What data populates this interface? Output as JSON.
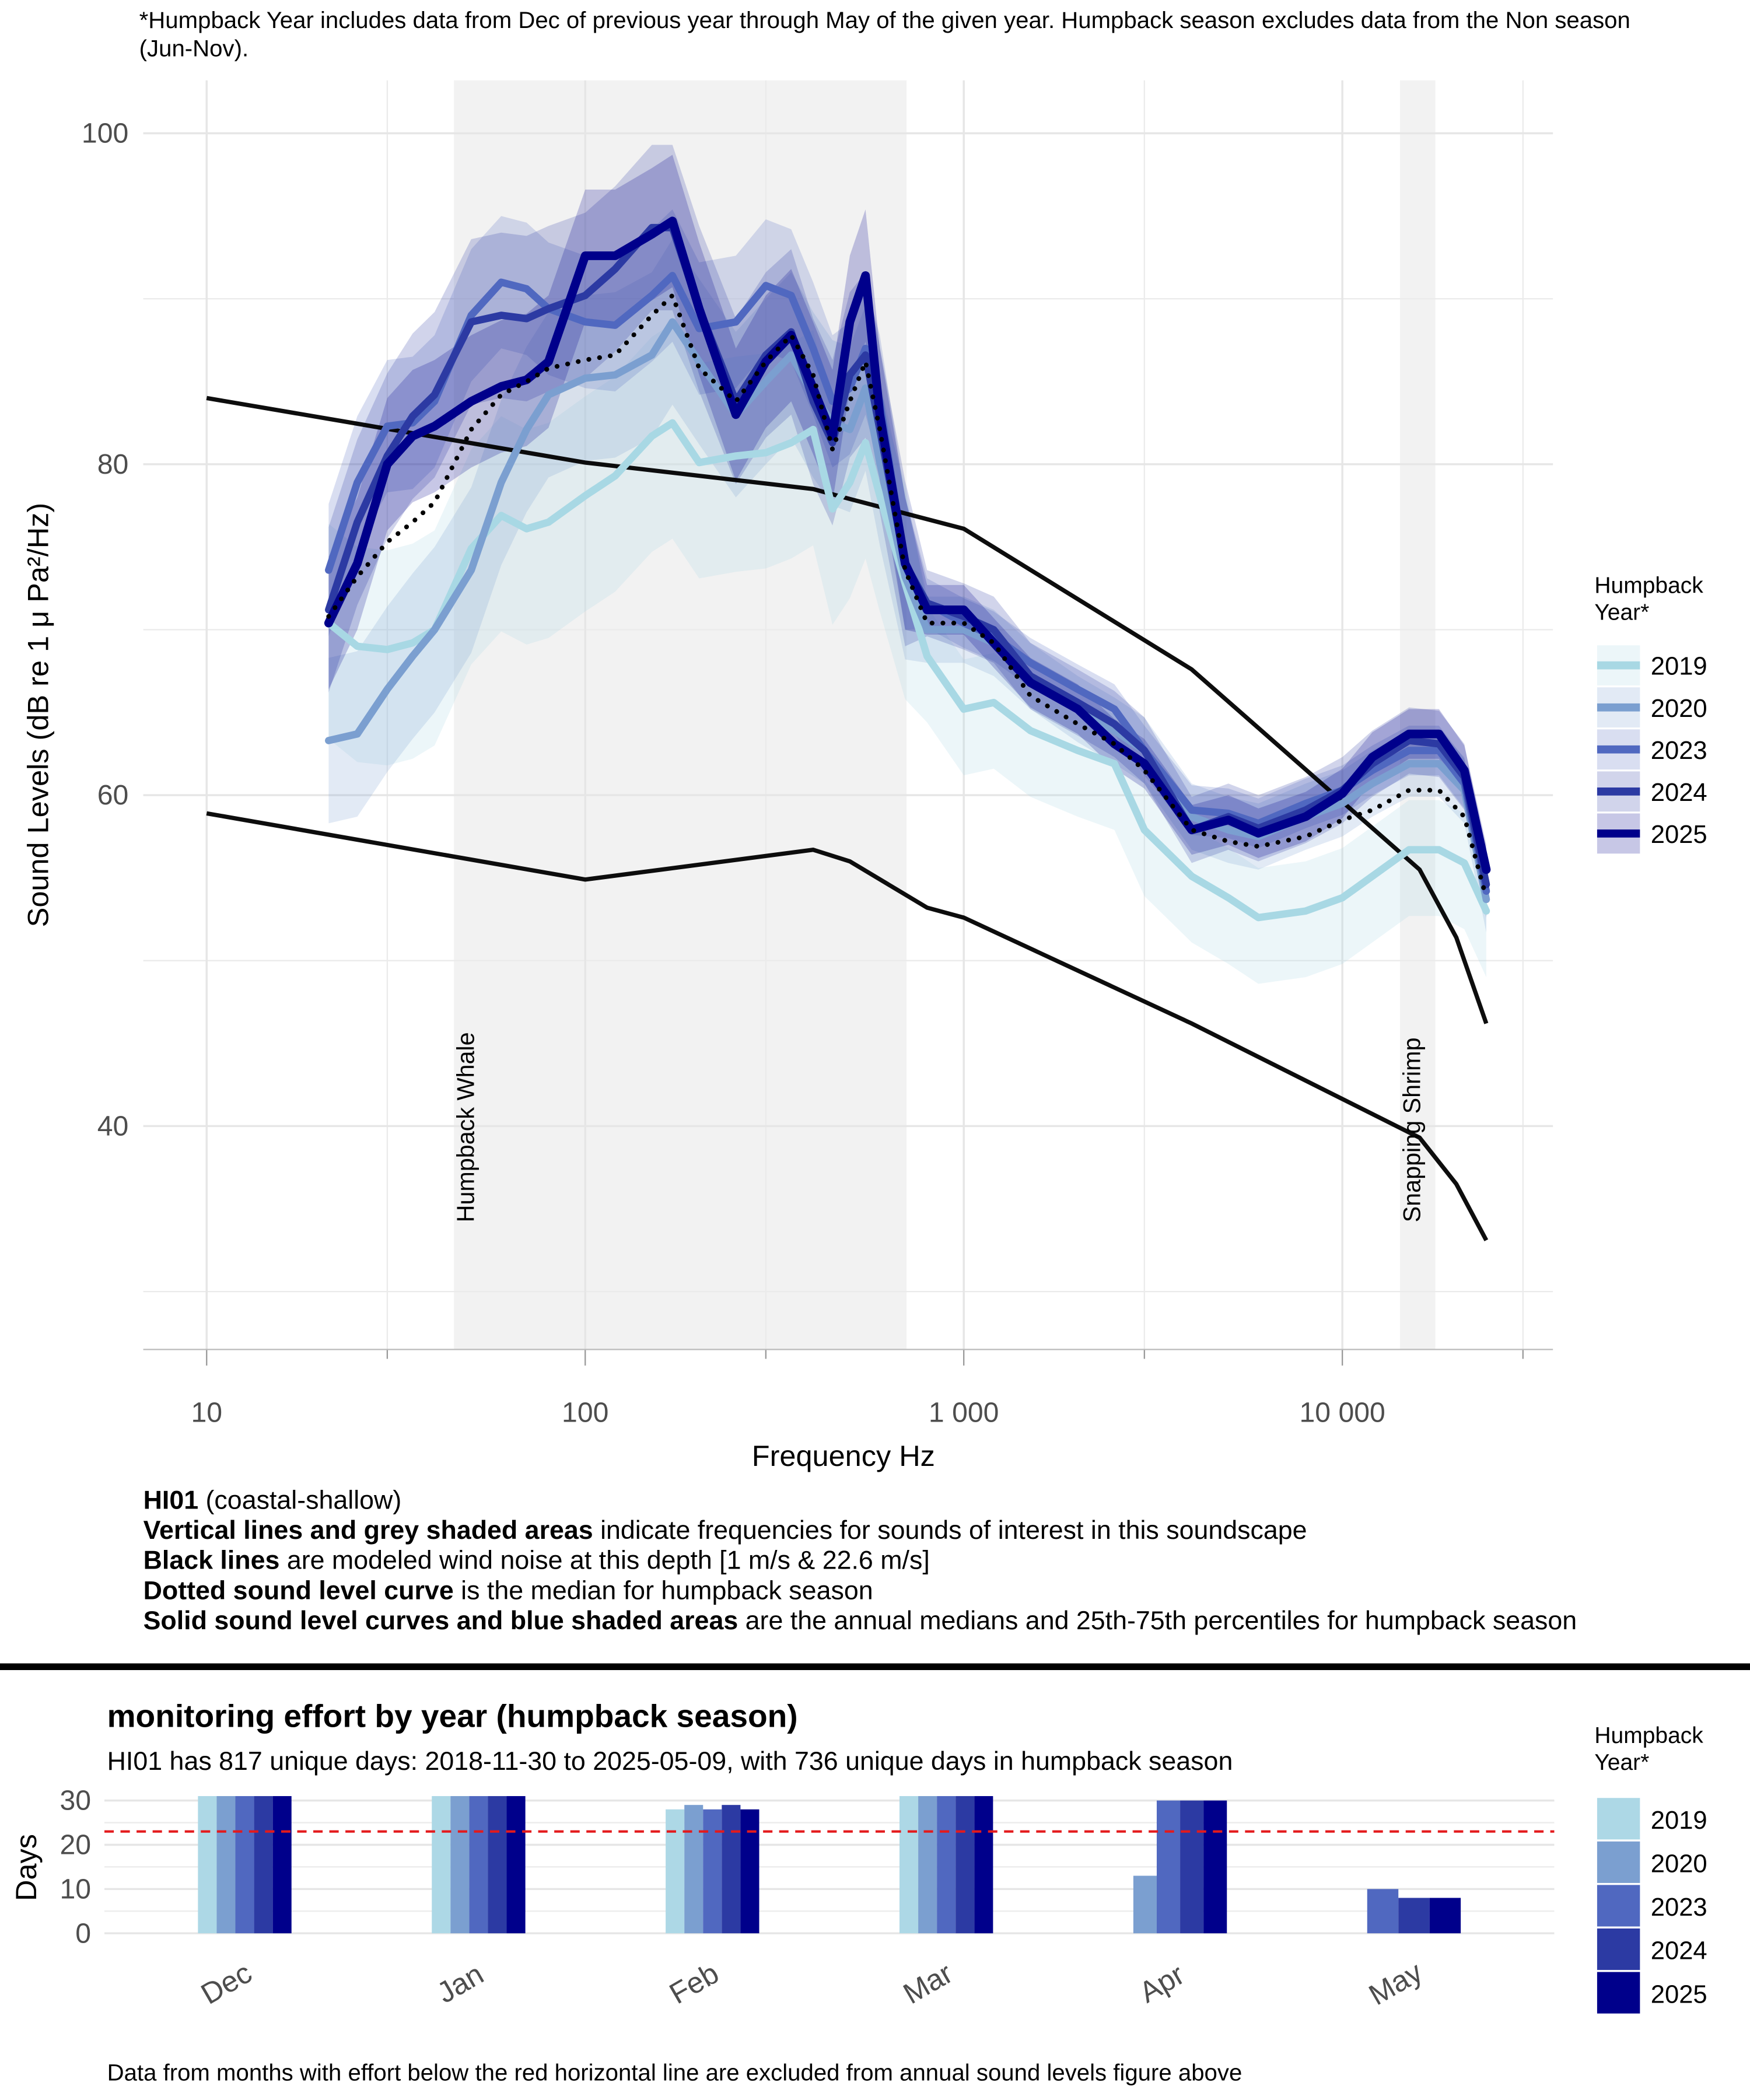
{
  "chart_data": [
    {
      "type": "line",
      "title": "*Humpback Year includes data from Dec of previous year through May of the given year. Humpback season excludes data from the Non season (Jun-Nov).",
      "xlabel": "Frequency Hz",
      "ylabel": "Sound Levels (dB re 1 μ Pa²/Hz)",
      "xscale": "log",
      "xlim": [
        6.8,
        36000
      ],
      "ylim": [
        26.5,
        103.2
      ],
      "xticks": [
        10,
        100,
        {
          "value": 1000,
          "label": "1 000"
        },
        {
          "value": 10000,
          "label": "10 000"
        }
      ],
      "minor_xticks": [
        30,
        300,
        3000,
        30000
      ],
      "yticks": [
        40,
        60,
        80,
        100
      ],
      "minor_yticks": [
        30,
        50,
        70,
        90
      ],
      "grid": true,
      "legend": "right",
      "legend_title": "Humpback Year*",
      "regions": [
        {
          "label": "Humpback Whale",
          "range": [
            45,
            706
          ]
        },
        {
          "label": "Snapping Shrimp",
          "range": [
            14200,
            17600
          ]
        }
      ],
      "x": [
        21,
        25,
        30,
        35,
        40,
        50,
        60,
        70,
        80,
        100,
        120,
        150,
        170,
        200,
        250,
        300,
        350,
        400,
        450,
        500,
        550,
        600,
        700,
        800,
        1000,
        1200,
        1500,
        2000,
        2500,
        3000,
        4000,
        5000,
        6000,
        8000,
        10000,
        12000,
        15000,
        18000,
        21000,
        24000
      ],
      "series": [
        {
          "name": "2019",
          "color": "#a8d8e4",
          "values": [
            70.4,
            69,
            68.8,
            69.2,
            70,
            74.9,
            76.9,
            76.1,
            76.5,
            78.1,
            79.3,
            81.7,
            82.5,
            80.1,
            80.5,
            80.7,
            81.3,
            82.1,
            77.3,
            78.9,
            81.3,
            78.1,
            72.8,
            68.4,
            65.2,
            65.6,
            63.9,
            62.7,
            61.9,
            57.9,
            55.1,
            53.8,
            52.6,
            53,
            53.8,
            55.1,
            56.7,
            56.7,
            55.9,
            53
          ],
          "low": [
            63.4,
            62,
            61.8,
            62.2,
            63,
            67.9,
            69.9,
            69.1,
            69.5,
            71.1,
            72.3,
            74.7,
            75.5,
            73.1,
            73.5,
            73.7,
            74.3,
            75.1,
            70.3,
            71.9,
            74.3,
            71.1,
            65.8,
            64.4,
            61.2,
            61.6,
            59.9,
            58.7,
            57.9,
            53.9,
            51.1,
            49.8,
            48.6,
            49,
            49.8,
            51.1,
            52.7,
            52.7,
            51.9,
            49
          ],
          "high": [
            76.4,
            75,
            74.8,
            75.2,
            76,
            80.9,
            82.9,
            82.1,
            82.5,
            84.1,
            85.3,
            87.7,
            88.5,
            86.1,
            86.5,
            86.7,
            87.3,
            88.1,
            83.3,
            84.9,
            87.3,
            84.1,
            78.8,
            71.4,
            68.2,
            68.6,
            66.9,
            65.7,
            64.9,
            60.9,
            58.1,
            56.8,
            55.6,
            56,
            56.8,
            58.1,
            59.7,
            59.7,
            58.9,
            56
          ]
        },
        {
          "name": "2020",
          "color": "#7b9fd0",
          "values": [
            63.3,
            63.7,
            66.4,
            68.4,
            70,
            73.6,
            78.9,
            82.1,
            84.2,
            85.2,
            85.4,
            86.6,
            88.6,
            86.2,
            83,
            85,
            86.6,
            84.2,
            82.5,
            82.1,
            84.6,
            80.1,
            73.2,
            70,
            70,
            69.2,
            67.2,
            65.2,
            63.9,
            62.7,
            58.7,
            57.9,
            57.5,
            58.7,
            59.5,
            60.7,
            61.9,
            61.9,
            60.3,
            53.7
          ],
          "low": [
            58.3,
            58.7,
            61.4,
            63.4,
            65,
            68.6,
            73.9,
            77.1,
            79.2,
            80.2,
            80.4,
            81.6,
            83.6,
            81.2,
            78,
            80,
            81.6,
            79.2,
            77.5,
            77.1,
            79.6,
            75.1,
            68.2,
            68,
            68,
            67.2,
            65.2,
            63.2,
            61.9,
            60.7,
            56.7,
            55.9,
            55.5,
            56.7,
            57.5,
            58.7,
            59.9,
            59.9,
            58.3,
            51.7
          ],
          "high": [
            68.3,
            68.7,
            71.4,
            73.4,
            75,
            78.6,
            83.9,
            87.1,
            89.2,
            90.2,
            90.4,
            91.6,
            93.6,
            91.2,
            88,
            90,
            91.6,
            89.2,
            87.5,
            87.1,
            89.6,
            85.1,
            78.2,
            72,
            72,
            71.2,
            69.2,
            67.2,
            65.9,
            64.7,
            60.7,
            59.9,
            59.5,
            60.7,
            61.5,
            62.7,
            63.9,
            63.9,
            62.3,
            55.7
          ]
        },
        {
          "name": "2023",
          "color": "#5068c0",
          "values": [
            73.6,
            78.9,
            82.3,
            82.5,
            83.8,
            89,
            91,
            90.6,
            89.4,
            88.6,
            88.4,
            90.2,
            91.4,
            88.2,
            88.6,
            90.8,
            90.2,
            87,
            83.8,
            84.6,
            87,
            83.8,
            74,
            71.6,
            70.4,
            69.6,
            68,
            66.4,
            65.2,
            62.7,
            59.1,
            58.9,
            58.3,
            59.5,
            60.3,
            61.5,
            62.7,
            62.7,
            60.7,
            54.2
          ],
          "low": [
            69.6,
            74.9,
            78.3,
            78.5,
            79.8,
            85,
            87,
            86.6,
            85.4,
            84.6,
            84.4,
            86.2,
            87.4,
            84.2,
            84.6,
            86.8,
            86.2,
            83,
            79.8,
            80.6,
            83,
            79.8,
            70,
            70.1,
            68.9,
            68.1,
            66.5,
            64.9,
            63.7,
            61.2,
            57.6,
            57.4,
            56.8,
            58,
            58.8,
            60,
            61.2,
            61.2,
            59.2,
            52.7
          ],
          "high": [
            77.6,
            82.9,
            86.3,
            86.5,
            87.8,
            93,
            95,
            94.6,
            93.4,
            92.6,
            92.4,
            94.2,
            95.4,
            92.2,
            92.6,
            94.8,
            94.2,
            91,
            87.8,
            88.6,
            91,
            87.8,
            78,
            73.1,
            71.9,
            71.1,
            69.5,
            67.9,
            66.7,
            64.2,
            60.6,
            60.4,
            59.8,
            61,
            61.8,
            63,
            64.2,
            64.2,
            62.2,
            55.7
          ]
        },
        {
          "name": "2024",
          "color": "#2c3aa3",
          "values": [
            71.2,
            76.5,
            80.5,
            82.9,
            84.2,
            88.6,
            89,
            88.8,
            89.4,
            90.2,
            91.8,
            94.3,
            94.3,
            89.4,
            83.8,
            86.6,
            88,
            83.8,
            81.3,
            85.4,
            86.6,
            82.1,
            74,
            71.6,
            70.8,
            70,
            67.2,
            65.6,
            64.3,
            62.7,
            57.9,
            58.7,
            58,
            59.1,
            60.3,
            61.9,
            63.3,
            63.1,
            61.1,
            54.6
          ],
          "low": [
            66.2,
            71.5,
            75.5,
            77.9,
            79.2,
            83.6,
            84,
            83.8,
            84.4,
            85.2,
            86.8,
            89.3,
            89.3,
            84.4,
            78.8,
            81.6,
            83,
            78.8,
            76.3,
            80.4,
            81.6,
            77.1,
            69,
            69.6,
            68.8,
            68,
            65.2,
            63.6,
            62.3,
            60.7,
            55.9,
            56.7,
            56,
            57.1,
            58.3,
            59.9,
            61.3,
            61.1,
            59.1,
            52.6
          ],
          "high": [
            76.2,
            81.5,
            85.5,
            87.9,
            89.2,
            93.6,
            94,
            93.8,
            94.4,
            95.2,
            96.8,
            99.3,
            99.3,
            94.4,
            88.8,
            91.6,
            93,
            88.8,
            86.3,
            90.4,
            91.6,
            87.1,
            79,
            73.6,
            72.8,
            72,
            69.2,
            67.6,
            66.3,
            64.7,
            59.9,
            60.7,
            60,
            61.1,
            62.3,
            63.9,
            65.3,
            65.1,
            63.1,
            56.6
          ]
        },
        {
          "name": "2025",
          "color": "#00008b",
          "values": [
            70.4,
            74,
            80,
            81.7,
            82.3,
            83.8,
            84.7,
            85.1,
            86.2,
            92.6,
            92.6,
            93.9,
            94.7,
            89.4,
            83,
            86.2,
            87.8,
            84.6,
            81.7,
            88.6,
            91.4,
            83,
            74,
            71.2,
            71.2,
            69.2,
            66.8,
            65.2,
            63.1,
            61.9,
            57.9,
            58.5,
            57.7,
            58.7,
            60.1,
            62.3,
            63.7,
            63.7,
            61.5,
            55.5
          ],
          "low": [
            66.4,
            70,
            76,
            77.7,
            78.3,
            79.8,
            80.7,
            81.1,
            82.2,
            88.6,
            88.6,
            89.9,
            90.7,
            85.4,
            79,
            82.2,
            83.8,
            80.6,
            77.7,
            84.6,
            87.4,
            79,
            70,
            69.7,
            69.7,
            67.7,
            65.3,
            63.7,
            61.6,
            60.4,
            56.4,
            57,
            56.2,
            57.2,
            58.6,
            60.8,
            62.2,
            62.2,
            60,
            54
          ],
          "high": [
            74.4,
            78,
            84,
            85.7,
            86.3,
            87.8,
            88.7,
            89.1,
            90.2,
            96.6,
            96.6,
            97.9,
            98.7,
            93.4,
            87,
            90.2,
            91.8,
            88.6,
            85.7,
            92.6,
            95.4,
            87,
            78,
            72.7,
            72.7,
            70.7,
            68.3,
            66.7,
            64.6,
            63.4,
            59.4,
            60,
            59.2,
            60.2,
            61.6,
            63.8,
            65.2,
            65.2,
            63,
            57
          ]
        }
      ],
      "median_values": [
        70.8,
        73.2,
        75.3,
        76.5,
        77.7,
        82.1,
        84.2,
        85,
        85.8,
        86.3,
        86.6,
        89,
        90.2,
        85.8,
        83.8,
        86.2,
        87.8,
        85.4,
        80.9,
        83.8,
        86.2,
        82.1,
        73.6,
        70.4,
        70.4,
        69.2,
        66,
        64.3,
        63.1,
        61.5,
        57.9,
        57.2,
        56.9,
        57.5,
        58.5,
        59.1,
        60.3,
        60.3,
        58.7,
        53.8
      ],
      "median_color": "#000000",
      "reference_lines": [
        {
          "color": "#000000",
          "x": [
            10,
            100,
            400,
            500,
            1000,
            4000,
            16000,
            20000,
            24000
          ],
          "values": [
            84,
            80.1,
            78.5,
            77.9,
            76.1,
            67.6,
            55.5,
            51.4,
            46.2
          ]
        },
        {
          "color": "#000000",
          "x": [
            10,
            100,
            400,
            500,
            800,
            1000,
            4000,
            16000,
            20000,
            24000
          ],
          "values": [
            58.9,
            54.9,
            56.7,
            56,
            53.2,
            52.6,
            46.2,
            39.3,
            36.5,
            33.1
          ]
        }
      ],
      "notes": [
        {
          "bold": "HI01",
          "text": " (coastal-shallow)"
        },
        {
          "bold": "Vertical lines and grey shaded areas",
          "text": " indicate frequencies for sounds of interest in this soundscape"
        },
        {
          "bold": "Black lines",
          "text": " are modeled wind noise at this depth [1 m/s & 22.6 m/s]"
        },
        {
          "bold": "Dotted sound level curve",
          "text": " is the median for humpback season"
        },
        {
          "bold": "Solid sound level curves and blue shaded areas",
          "text": " are the annual medians and 25th-75th percentiles for humpback season"
        }
      ]
    },
    {
      "type": "bar",
      "title": "monitoring effort by year (humpback season)",
      "subtitle": "HI01 has 817 unique days: 2018-11-30 to 2025-05-09, with 736 unique days in humpback season",
      "ylabel": "Days",
      "ylim": [
        -3.3,
        33
      ],
      "yticks": [
        0,
        10,
        20,
        30
      ],
      "minor_yticks": [
        5,
        15,
        25
      ],
      "grid": true,
      "legend": "right",
      "legend_title": "Humpback Year*",
      "threshold": 23,
      "threshold_color": "#e41a1c",
      "categories": [
        "Dec",
        "Jan",
        "Feb",
        "Mar",
        "Apr",
        "May"
      ],
      "series": [
        {
          "name": "2019",
          "color": "#add8e6",
          "values": [
            31,
            31,
            28,
            31,
            null,
            null
          ]
        },
        {
          "name": "2020",
          "color": "#7b9fd0",
          "values": [
            31,
            31,
            29,
            31,
            13,
            null
          ]
        },
        {
          "name": "2023",
          "color": "#5068c0",
          "values": [
            31,
            31,
            28,
            31,
            30,
            10
          ]
        },
        {
          "name": "2024",
          "color": "#2c3aa3",
          "values": [
            31,
            31,
            29,
            31,
            30,
            8
          ]
        },
        {
          "name": "2025",
          "color": "#00008b",
          "values": [
            31,
            31,
            28,
            31,
            30,
            8
          ]
        }
      ],
      "footnote": "Data from months with effort below the red horizontal line are excluded from annual sound levels figure above"
    }
  ]
}
